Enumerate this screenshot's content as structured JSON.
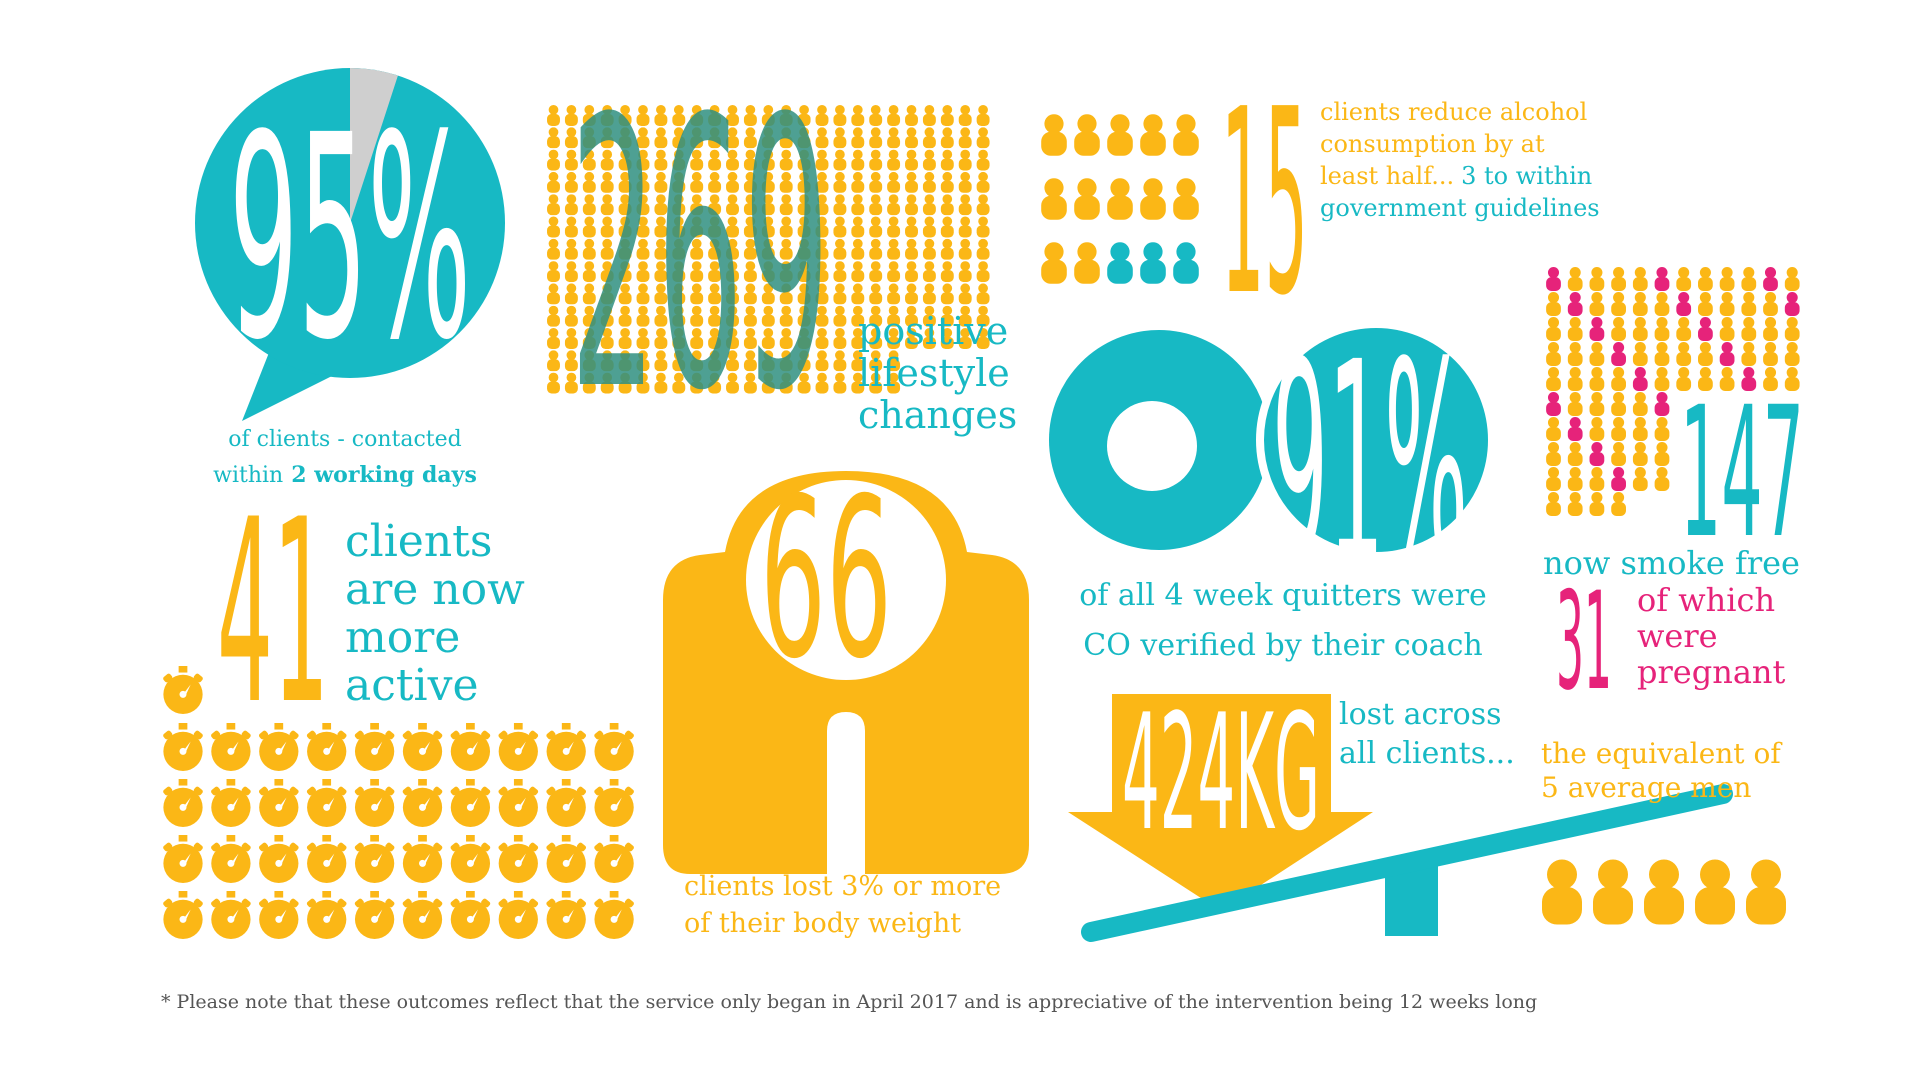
{
  "contact": {
    "figure": "95%",
    "line1": "of clients - contacted",
    "line2": "within",
    "highlight": "2 working days"
  },
  "lifestyle": {
    "figure": "269",
    "lines": [
      "positive",
      "lifestyle",
      "changes"
    ]
  },
  "alcohol": {
    "figure": "15",
    "lines": [
      "clients reduce alcohol",
      "consumption by at",
      "least half...",
      "3 to within",
      "government guidelines"
    ]
  },
  "co_verified": {
    "figure": "91%",
    "lines": [
      "of all 4 week quitters were",
      "CO verified by their coach"
    ]
  },
  "smoke_free": {
    "figure": "147",
    "caption": "now smoke free",
    "pregnant_figure": "31",
    "pregnant_lines": [
      "of which",
      "were",
      "pregnant"
    ]
  },
  "active": {
    "figure": "41",
    "lines": [
      "clients",
      "are now",
      "more",
      "active"
    ]
  },
  "weight": {
    "figure": "66",
    "lines": [
      "clients lost 3% or more",
      "of their body weight"
    ]
  },
  "weight_lost": {
    "figure": "424KG",
    "lines": [
      "lost across",
      "all clients..."
    ],
    "equivalent": [
      "the equivalent of",
      "5 average men"
    ]
  },
  "footnote": "* Please note that these outcomes reflect that the service only began in April 2017 and is appreciative of the intervention being 12 weeks long"
}
